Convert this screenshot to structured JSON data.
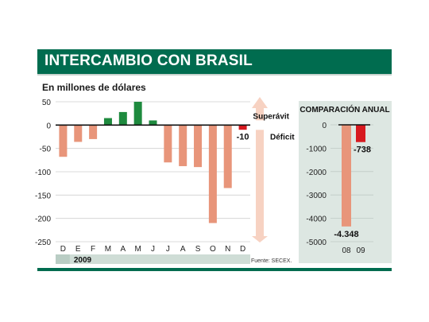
{
  "header": {
    "title": "INTERCAMBIO CON BRASIL"
  },
  "subtitle": "En millones de dólares",
  "source": "Fuente: SECEX.",
  "colors": {
    "brand": "#006c4f",
    "surplus": "#1e8a3e",
    "deficit": "#e8957a",
    "deficit_annual_09": "#d7191f",
    "panel_bg": "#dde7e2",
    "arrow": "#f7d2c2",
    "year_band": "#cfddd6"
  },
  "chart_data": [
    {
      "type": "bar",
      "title": "",
      "xlabel": "",
      "ylabel": "",
      "ylim": [
        -250,
        50
      ],
      "yticks": [
        50,
        0,
        -50,
        -100,
        -150,
        -200,
        -250
      ],
      "categories": [
        "D",
        "E",
        "F",
        "M",
        "A",
        "M",
        "J",
        "J",
        "A",
        "S",
        "O",
        "N",
        "D"
      ],
      "values": [
        -68,
        -36,
        -30,
        15,
        28,
        50,
        10,
        -80,
        -88,
        -90,
        -210,
        -135,
        -10
      ],
      "year_label": "2009",
      "data_labels": [
        {
          "index": 12,
          "text": "-10"
        }
      ],
      "annotations": {
        "surplus": "Superávit",
        "deficit": "Déficit"
      },
      "grid": true
    },
    {
      "type": "bar",
      "title": "COMPARACIÓN ANUAL",
      "categories": [
        "08",
        "09"
      ],
      "values": [
        -4348,
        -738
      ],
      "data_labels": [
        "-4.348",
        "-738"
      ],
      "ylim": [
        -5000,
        0
      ],
      "yticks": [
        "0",
        "-1000",
        "-2000",
        "-3000",
        "-4000",
        "-5000"
      ],
      "grid": true
    }
  ]
}
